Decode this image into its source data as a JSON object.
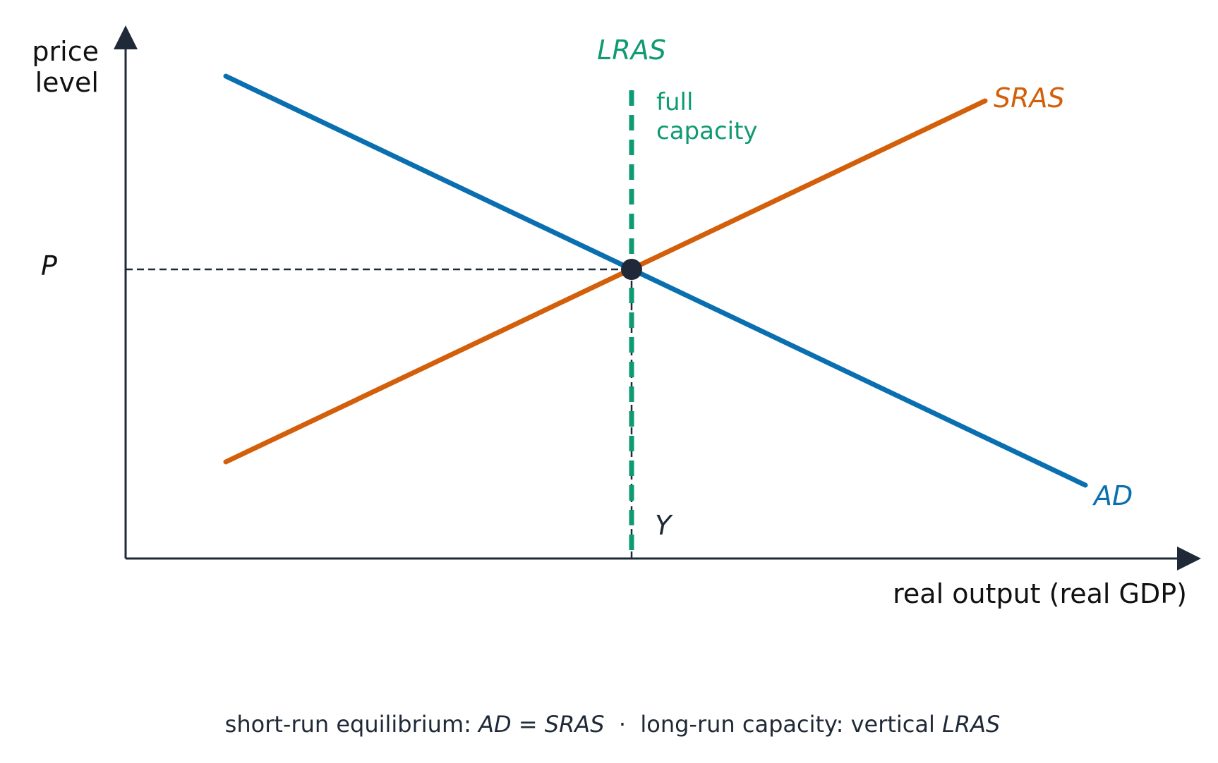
{
  "axes": {
    "y_label_line1": "price",
    "y_label_line2": "level",
    "x_label": "real output (real GDP)"
  },
  "curves": {
    "lras": {
      "label": "LRAS",
      "note_line1": "full",
      "note_line2": "capacity",
      "color": "#0e9a72"
    },
    "sras": {
      "label": "SRAS",
      "color": "#d35f0a"
    },
    "ad": {
      "label": "AD",
      "color": "#0a6fb0"
    }
  },
  "equilibrium": {
    "price_label": "P",
    "output_label": "Y",
    "point_color": "#1f2937"
  },
  "caption": {
    "part1": "short-run equilibrium: ",
    "ad": "AD",
    "eq": " = ",
    "sras": "SRAS",
    "sep": "  ·  long-run capacity: vertical ",
    "lras": "LRAS"
  }
}
